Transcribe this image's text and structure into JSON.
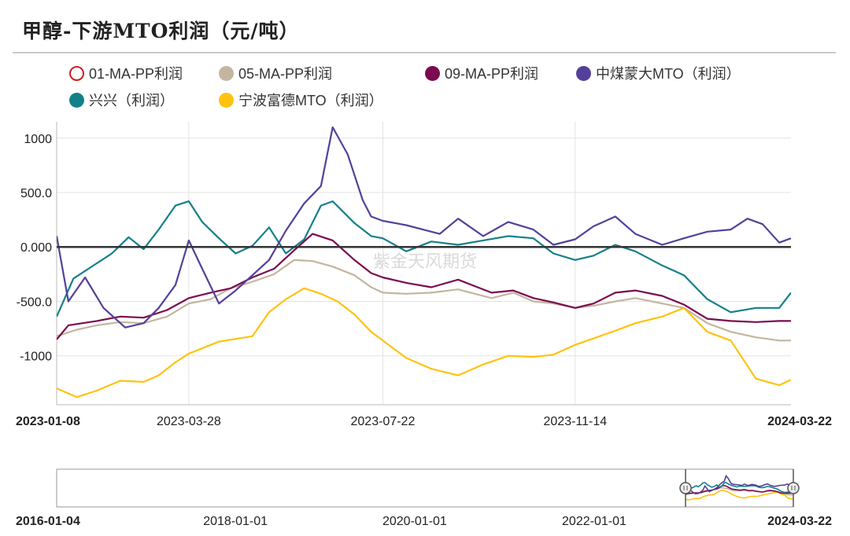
{
  "title": "甲醇-下游MTO利润（元/吨）",
  "watermark": "紫金天风期货",
  "colors": {
    "s01": "#cc1f1f",
    "s05": "#c4b5a0",
    "s09": "#7b0a4f",
    "zm": "#54409a",
    "xx": "#138089",
    "nb": "#ffc20f",
    "grid": "#e3e3e3",
    "zero_line": "#333333"
  },
  "legend": [
    {
      "key": "s01",
      "label": "01-MA-PP利润",
      "hollow": true
    },
    {
      "key": "s05",
      "label": "05-MA-PP利润",
      "hollow": false
    },
    {
      "key": "s09",
      "label": "09-MA-PP利润",
      "hollow": false
    },
    {
      "key": "zm",
      "label": "中煤蒙大MTO（利润）",
      "hollow": false
    },
    {
      "key": "xx",
      "label": "兴兴（利润）",
      "hollow": false
    },
    {
      "key": "nb",
      "label": "宁波富德MTO（利润）",
      "hollow": false
    }
  ],
  "axis": {
    "y_ticks": [
      "1000",
      "500.0",
      "0.000",
      "-500.0",
      "-1000"
    ],
    "y_tick_values": [
      1000,
      500,
      0,
      -500,
      -1000
    ],
    "ylim": [
      -1450,
      1150
    ],
    "x_ticks": [
      "2023-01-08",
      "2023-03-28",
      "2023-07-22",
      "2023-11-14",
      "2024-03-22"
    ],
    "x_range": [
      "2023-01-08",
      "2024-03-22"
    ]
  },
  "navigator": {
    "x_ticks": [
      "2016-01-04",
      "2018-01-01",
      "2020-01-01",
      "2022-01-01",
      "2024-03-22"
    ],
    "x_range": [
      "2016-01-04",
      "2024-03-22"
    ],
    "selected_range": [
      "2023-01-08",
      "2024-03-22"
    ]
  },
  "chart_data": {
    "type": "line",
    "ylabel": "",
    "series": [
      {
        "name": "01-MA-PP利润",
        "key": "s01",
        "points": []
      },
      {
        "name": "05-MA-PP利润",
        "key": "s05",
        "points": [
          [
            "2023-01-08",
            -820
          ],
          [
            "2023-01-20",
            -760
          ],
          [
            "2023-02-01",
            -720
          ],
          [
            "2023-02-15",
            -690
          ],
          [
            "2023-03-01",
            -700
          ],
          [
            "2023-03-15",
            -640
          ],
          [
            "2023-03-28",
            -520
          ],
          [
            "2023-04-10",
            -480
          ],
          [
            "2023-04-22",
            -380
          ],
          [
            "2023-05-05",
            -320
          ],
          [
            "2023-05-18",
            -250
          ],
          [
            "2023-05-30",
            -120
          ],
          [
            "2023-06-10",
            -130
          ],
          [
            "2023-06-22",
            -180
          ],
          [
            "2023-07-05",
            -260
          ],
          [
            "2023-07-15",
            -370
          ],
          [
            "2023-07-22",
            -420
          ],
          [
            "2023-08-05",
            -430
          ],
          [
            "2023-08-20",
            -420
          ],
          [
            "2023-09-05",
            -390
          ],
          [
            "2023-09-15",
            -430
          ],
          [
            "2023-09-25",
            -470
          ],
          [
            "2023-10-08",
            -420
          ],
          [
            "2023-10-20",
            -500
          ],
          [
            "2023-11-01",
            -520
          ],
          [
            "2023-11-14",
            -560
          ],
          [
            "2023-11-25",
            -540
          ],
          [
            "2023-12-08",
            -500
          ],
          [
            "2023-12-20",
            -470
          ],
          [
            "2024-01-05",
            -520
          ],
          [
            "2024-01-18",
            -560
          ],
          [
            "2024-02-01",
            -700
          ],
          [
            "2024-02-15",
            -780
          ],
          [
            "2024-03-01",
            -830
          ],
          [
            "2024-03-15",
            -860
          ],
          [
            "2024-03-22",
            -860
          ]
        ]
      },
      {
        "name": "09-MA-PP利润",
        "key": "s09",
        "points": [
          [
            "2023-01-08",
            -850
          ],
          [
            "2023-01-15",
            -720
          ],
          [
            "2023-02-01",
            -680
          ],
          [
            "2023-02-15",
            -640
          ],
          [
            "2023-03-01",
            -650
          ],
          [
            "2023-03-15",
            -580
          ],
          [
            "2023-03-28",
            -470
          ],
          [
            "2023-04-10",
            -420
          ],
          [
            "2023-04-22",
            -380
          ],
          [
            "2023-05-05",
            -280
          ],
          [
            "2023-05-18",
            -200
          ],
          [
            "2023-05-30",
            -30
          ],
          [
            "2023-06-10",
            120
          ],
          [
            "2023-06-22",
            60
          ],
          [
            "2023-07-05",
            -120
          ],
          [
            "2023-07-15",
            -240
          ],
          [
            "2023-07-22",
            -280
          ],
          [
            "2023-08-05",
            -330
          ],
          [
            "2023-08-20",
            -370
          ],
          [
            "2023-09-05",
            -300
          ],
          [
            "2023-09-15",
            -360
          ],
          [
            "2023-09-25",
            -420
          ],
          [
            "2023-10-08",
            -400
          ],
          [
            "2023-10-20",
            -470
          ],
          [
            "2023-11-01",
            -510
          ],
          [
            "2023-11-14",
            -560
          ],
          [
            "2023-11-25",
            -520
          ],
          [
            "2023-12-08",
            -420
          ],
          [
            "2023-12-20",
            -400
          ],
          [
            "2024-01-05",
            -450
          ],
          [
            "2024-01-18",
            -530
          ],
          [
            "2024-02-01",
            -660
          ],
          [
            "2024-02-15",
            -680
          ],
          [
            "2024-03-01",
            -690
          ],
          [
            "2024-03-15",
            -680
          ],
          [
            "2024-03-22",
            -680
          ]
        ]
      },
      {
        "name": "中煤蒙大MTO（利润）",
        "key": "zm",
        "points": [
          [
            "2023-01-08",
            100
          ],
          [
            "2023-01-15",
            -500
          ],
          [
            "2023-01-25",
            -280
          ],
          [
            "2023-02-05",
            -560
          ],
          [
            "2023-02-18",
            -740
          ],
          [
            "2023-03-01",
            -700
          ],
          [
            "2023-03-10",
            -560
          ],
          [
            "2023-03-20",
            -350
          ],
          [
            "2023-03-28",
            60
          ],
          [
            "2023-04-05",
            -200
          ],
          [
            "2023-04-15",
            -520
          ],
          [
            "2023-04-25",
            -400
          ],
          [
            "2023-05-05",
            -260
          ],
          [
            "2023-05-15",
            -120
          ],
          [
            "2023-05-25",
            150
          ],
          [
            "2023-06-05",
            400
          ],
          [
            "2023-06-15",
            560
          ],
          [
            "2023-06-22",
            1100
          ],
          [
            "2023-07-01",
            850
          ],
          [
            "2023-07-10",
            430
          ],
          [
            "2023-07-15",
            280
          ],
          [
            "2023-07-22",
            240
          ],
          [
            "2023-08-05",
            200
          ],
          [
            "2023-08-15",
            160
          ],
          [
            "2023-08-25",
            120
          ],
          [
            "2023-09-05",
            260
          ],
          [
            "2023-09-20",
            100
          ],
          [
            "2023-10-05",
            230
          ],
          [
            "2023-10-20",
            160
          ],
          [
            "2023-11-01",
            20
          ],
          [
            "2023-11-14",
            70
          ],
          [
            "2023-11-25",
            190
          ],
          [
            "2023-12-08",
            280
          ],
          [
            "2023-12-20",
            120
          ],
          [
            "2024-01-05",
            20
          ],
          [
            "2024-01-18",
            80
          ],
          [
            "2024-02-01",
            140
          ],
          [
            "2024-02-15",
            160
          ],
          [
            "2024-02-25",
            260
          ],
          [
            "2024-03-05",
            210
          ],
          [
            "2024-03-15",
            40
          ],
          [
            "2024-03-22",
            80
          ]
        ]
      },
      {
        "name": "兴兴（利润）",
        "key": "xx",
        "points": [
          [
            "2023-01-08",
            -640
          ],
          [
            "2023-01-18",
            -290
          ],
          [
            "2023-02-01",
            -150
          ],
          [
            "2023-02-10",
            -60
          ],
          [
            "2023-02-20",
            90
          ],
          [
            "2023-03-01",
            -20
          ],
          [
            "2023-03-10",
            160
          ],
          [
            "2023-03-20",
            380
          ],
          [
            "2023-03-28",
            420
          ],
          [
            "2023-04-05",
            230
          ],
          [
            "2023-04-15",
            80
          ],
          [
            "2023-04-25",
            -60
          ],
          [
            "2023-05-05",
            10
          ],
          [
            "2023-05-15",
            180
          ],
          [
            "2023-05-25",
            -60
          ],
          [
            "2023-06-05",
            70
          ],
          [
            "2023-06-15",
            380
          ],
          [
            "2023-06-22",
            420
          ],
          [
            "2023-07-05",
            220
          ],
          [
            "2023-07-15",
            100
          ],
          [
            "2023-07-22",
            80
          ],
          [
            "2023-08-05",
            -40
          ],
          [
            "2023-08-20",
            50
          ],
          [
            "2023-09-05",
            20
          ],
          [
            "2023-09-20",
            60
          ],
          [
            "2023-10-05",
            100
          ],
          [
            "2023-10-20",
            80
          ],
          [
            "2023-11-01",
            -60
          ],
          [
            "2023-11-14",
            -120
          ],
          [
            "2023-11-25",
            -80
          ],
          [
            "2023-12-08",
            20
          ],
          [
            "2023-12-20",
            -40
          ],
          [
            "2024-01-05",
            -170
          ],
          [
            "2024-01-18",
            -260
          ],
          [
            "2024-02-01",
            -480
          ],
          [
            "2024-02-15",
            -600
          ],
          [
            "2024-03-01",
            -560
          ],
          [
            "2024-03-15",
            -560
          ],
          [
            "2024-03-22",
            -420
          ]
        ]
      },
      {
        "name": "宁波富德MTO（利润）",
        "key": "nb",
        "points": [
          [
            "2023-01-08",
            -1300
          ],
          [
            "2023-01-20",
            -1380
          ],
          [
            "2023-02-01",
            -1320
          ],
          [
            "2023-02-15",
            -1230
          ],
          [
            "2023-03-01",
            -1240
          ],
          [
            "2023-03-10",
            -1180
          ],
          [
            "2023-03-20",
            -1060
          ],
          [
            "2023-03-28",
            -980
          ],
          [
            "2023-04-15",
            -870
          ],
          [
            "2023-05-05",
            -820
          ],
          [
            "2023-05-15",
            -600
          ],
          [
            "2023-05-25",
            -480
          ],
          [
            "2023-06-05",
            -380
          ],
          [
            "2023-06-15",
            -430
          ],
          [
            "2023-06-25",
            -500
          ],
          [
            "2023-07-05",
            -620
          ],
          [
            "2023-07-15",
            -780
          ],
          [
            "2023-07-22",
            -860
          ],
          [
            "2023-08-05",
            -1020
          ],
          [
            "2023-08-20",
            -1120
          ],
          [
            "2023-09-05",
            -1180
          ],
          [
            "2023-09-20",
            -1080
          ],
          [
            "2023-10-05",
            -1000
          ],
          [
            "2023-10-20",
            -1010
          ],
          [
            "2023-11-01",
            -990
          ],
          [
            "2023-11-14",
            -900
          ],
          [
            "2023-11-25",
            -840
          ],
          [
            "2023-12-08",
            -770
          ],
          [
            "2023-12-20",
            -700
          ],
          [
            "2024-01-05",
            -640
          ],
          [
            "2024-01-18",
            -560
          ],
          [
            "2024-02-01",
            -780
          ],
          [
            "2024-02-15",
            -860
          ],
          [
            "2024-03-01",
            -1210
          ],
          [
            "2024-03-15",
            -1270
          ],
          [
            "2024-03-22",
            -1220
          ]
        ]
      }
    ]
  }
}
